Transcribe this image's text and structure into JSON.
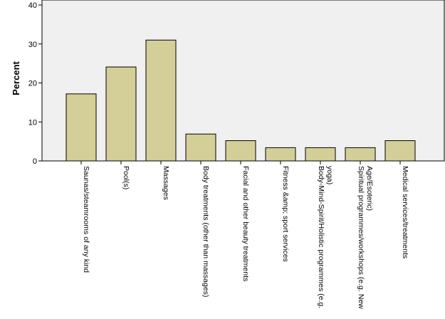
{
  "chart_data": {
    "type": "bar",
    "title": "",
    "xlabel": "",
    "ylabel": "Percent",
    "ylim": [
      0,
      40
    ],
    "yticks": [
      0,
      10,
      20,
      30,
      40
    ],
    "grid": false,
    "colors": {
      "plot_background": "#f0f0f0",
      "bar_fill": "#d4cf98",
      "bar_stroke": "#000000"
    },
    "categories": [
      [
        "Saunas/steamrooms of any kind"
      ],
      [
        "Pool(s)"
      ],
      [
        "Massages"
      ],
      [
        "Body treatments (other than massages)"
      ],
      [
        "Facial and other beauty treatments"
      ],
      [
        "Fitness &amp; sport services"
      ],
      [
        "Body-Mind-Spirit/Holistic programmes (e.g.",
        "yoga)"
      ],
      [
        "Spiritual programmes/workshops (e.g. New",
        "Age/Esoteric)"
      ],
      [
        "Medical services/treatments"
      ]
    ],
    "values": [
      17.2,
      24.1,
      31.0,
      6.9,
      5.2,
      3.4,
      3.4,
      3.4,
      5.2
    ]
  }
}
